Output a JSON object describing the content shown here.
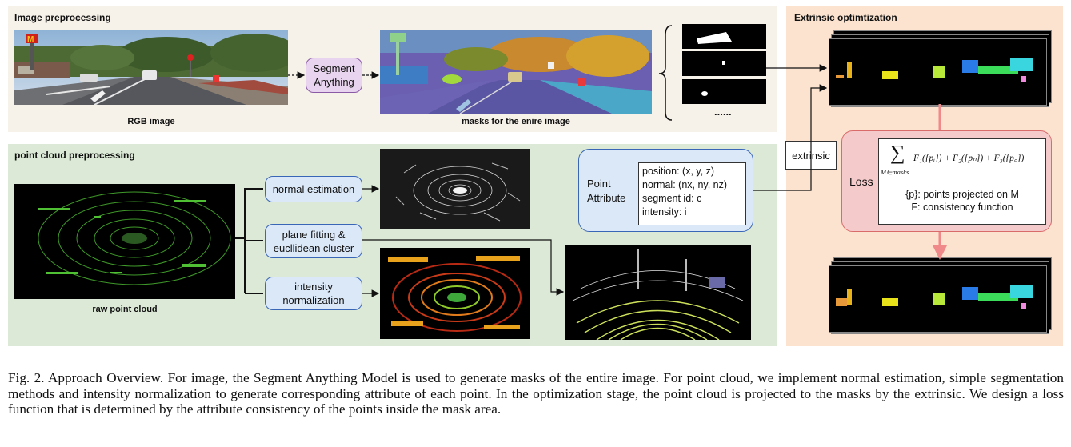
{
  "image_preprocessing": {
    "title": "Image preprocessing",
    "rgb_label": "RGB image",
    "sam_label_1": "Segment",
    "sam_label_2": "Anything",
    "masks_label": "masks for the enire image",
    "ellipsis": "......"
  },
  "point_cloud_preprocessing": {
    "title": "point cloud preprocessing",
    "raw_label": "raw point cloud",
    "normal_estimation": "normal estimation",
    "plane_fitting_1": "plane fitting &",
    "plane_fitting_2": "eucllidean cluster",
    "intensity_1": "intensity",
    "intensity_2": "normalization",
    "point_attribute_1": "Point",
    "point_attribute_2": "Attribute",
    "attributes": [
      "position: (x, y, z)",
      "normal: (nx, ny, nz)",
      "segment id: c",
      "intensity: i"
    ]
  },
  "extrinsic": {
    "label": "extrinsic"
  },
  "optimization": {
    "title": "Extrinsic optimtization",
    "loss_label": "Loss",
    "sum_symbol": "∑",
    "sum_subscript": "M∈masks",
    "formula": "F₁({pᵢ}) + F₂({pₙ}) + F₃({p꜀})",
    "line1": "{p}:  points projected on M",
    "line2": "F: consistency function"
  },
  "caption": "Fig. 2.   Approach Overview. For image, the Segment Anything Model is used to generate masks of the entire image. For point cloud, we implement normal estimation, simple segmentation methods and intensity normalization to generate corresponding attribute of each point. In the optimization stage, the point cloud is projected to the masks by the extrinsic. We design a loss function that is determined by the attribute consistency of the points inside the mask area.",
  "colors": {
    "image_panel": "#f6f1e9",
    "pc_panel": "#dbe9d6",
    "opt_panel": "#fbe3cf",
    "box_fill": "#dbe8f8",
    "box_border": "#3a66b8",
    "sam_fill": "#e8d4ee",
    "loss_fill": "#f5caca",
    "loss_arrow": "#f08a8a"
  }
}
